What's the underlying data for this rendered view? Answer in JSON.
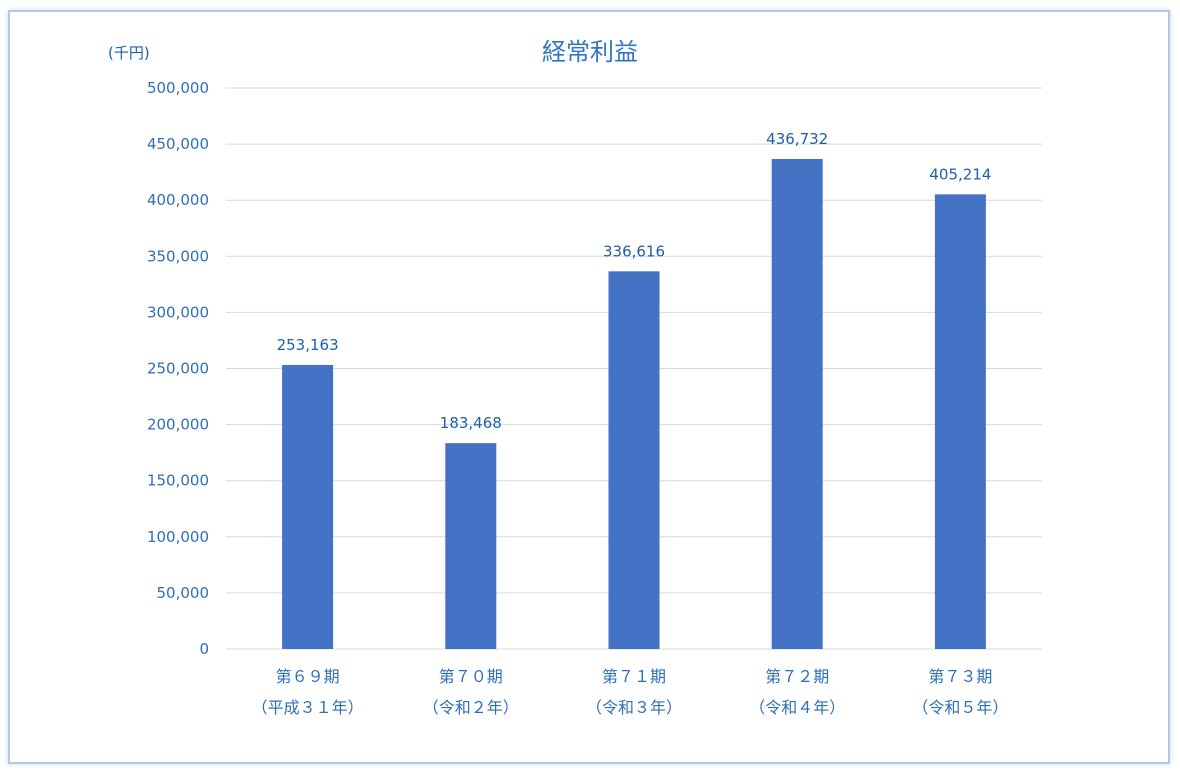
{
  "chart_data": {
    "type": "bar",
    "title": "経常利益",
    "unit_label": "(千円)",
    "categories": [
      [
        "第６９期",
        "（平成３１年）"
      ],
      [
        "第７０期",
        "（令和２年）"
      ],
      [
        "第７１期",
        "（令和３年）"
      ],
      [
        "第７２期",
        "（令和４年）"
      ],
      [
        "第７３期",
        "（令和５年）"
      ]
    ],
    "series": [
      {
        "values": [
          253163,
          183468,
          336616,
          436732,
          405214
        ]
      }
    ],
    "data_labels": [
      "253,163",
      "183,468",
      "336,616",
      "436,732",
      "405,214"
    ],
    "ylim": [
      0,
      500000
    ],
    "yticks": [
      0,
      50000,
      100000,
      150000,
      200000,
      250000,
      300000,
      350000,
      400000,
      450000,
      500000
    ],
    "ytick_labels": [
      "0",
      "50,000",
      "100,000",
      "150,000",
      "200,000",
      "250,000",
      "300,000",
      "350,000",
      "400,000",
      "450,000",
      "500,000"
    ],
    "grid": true,
    "legend": "none",
    "colors": {
      "bar": "#4472c4",
      "grid": "#d9d9d9",
      "text": "#2f6fb8",
      "frame": "#b4c7e7"
    }
  }
}
